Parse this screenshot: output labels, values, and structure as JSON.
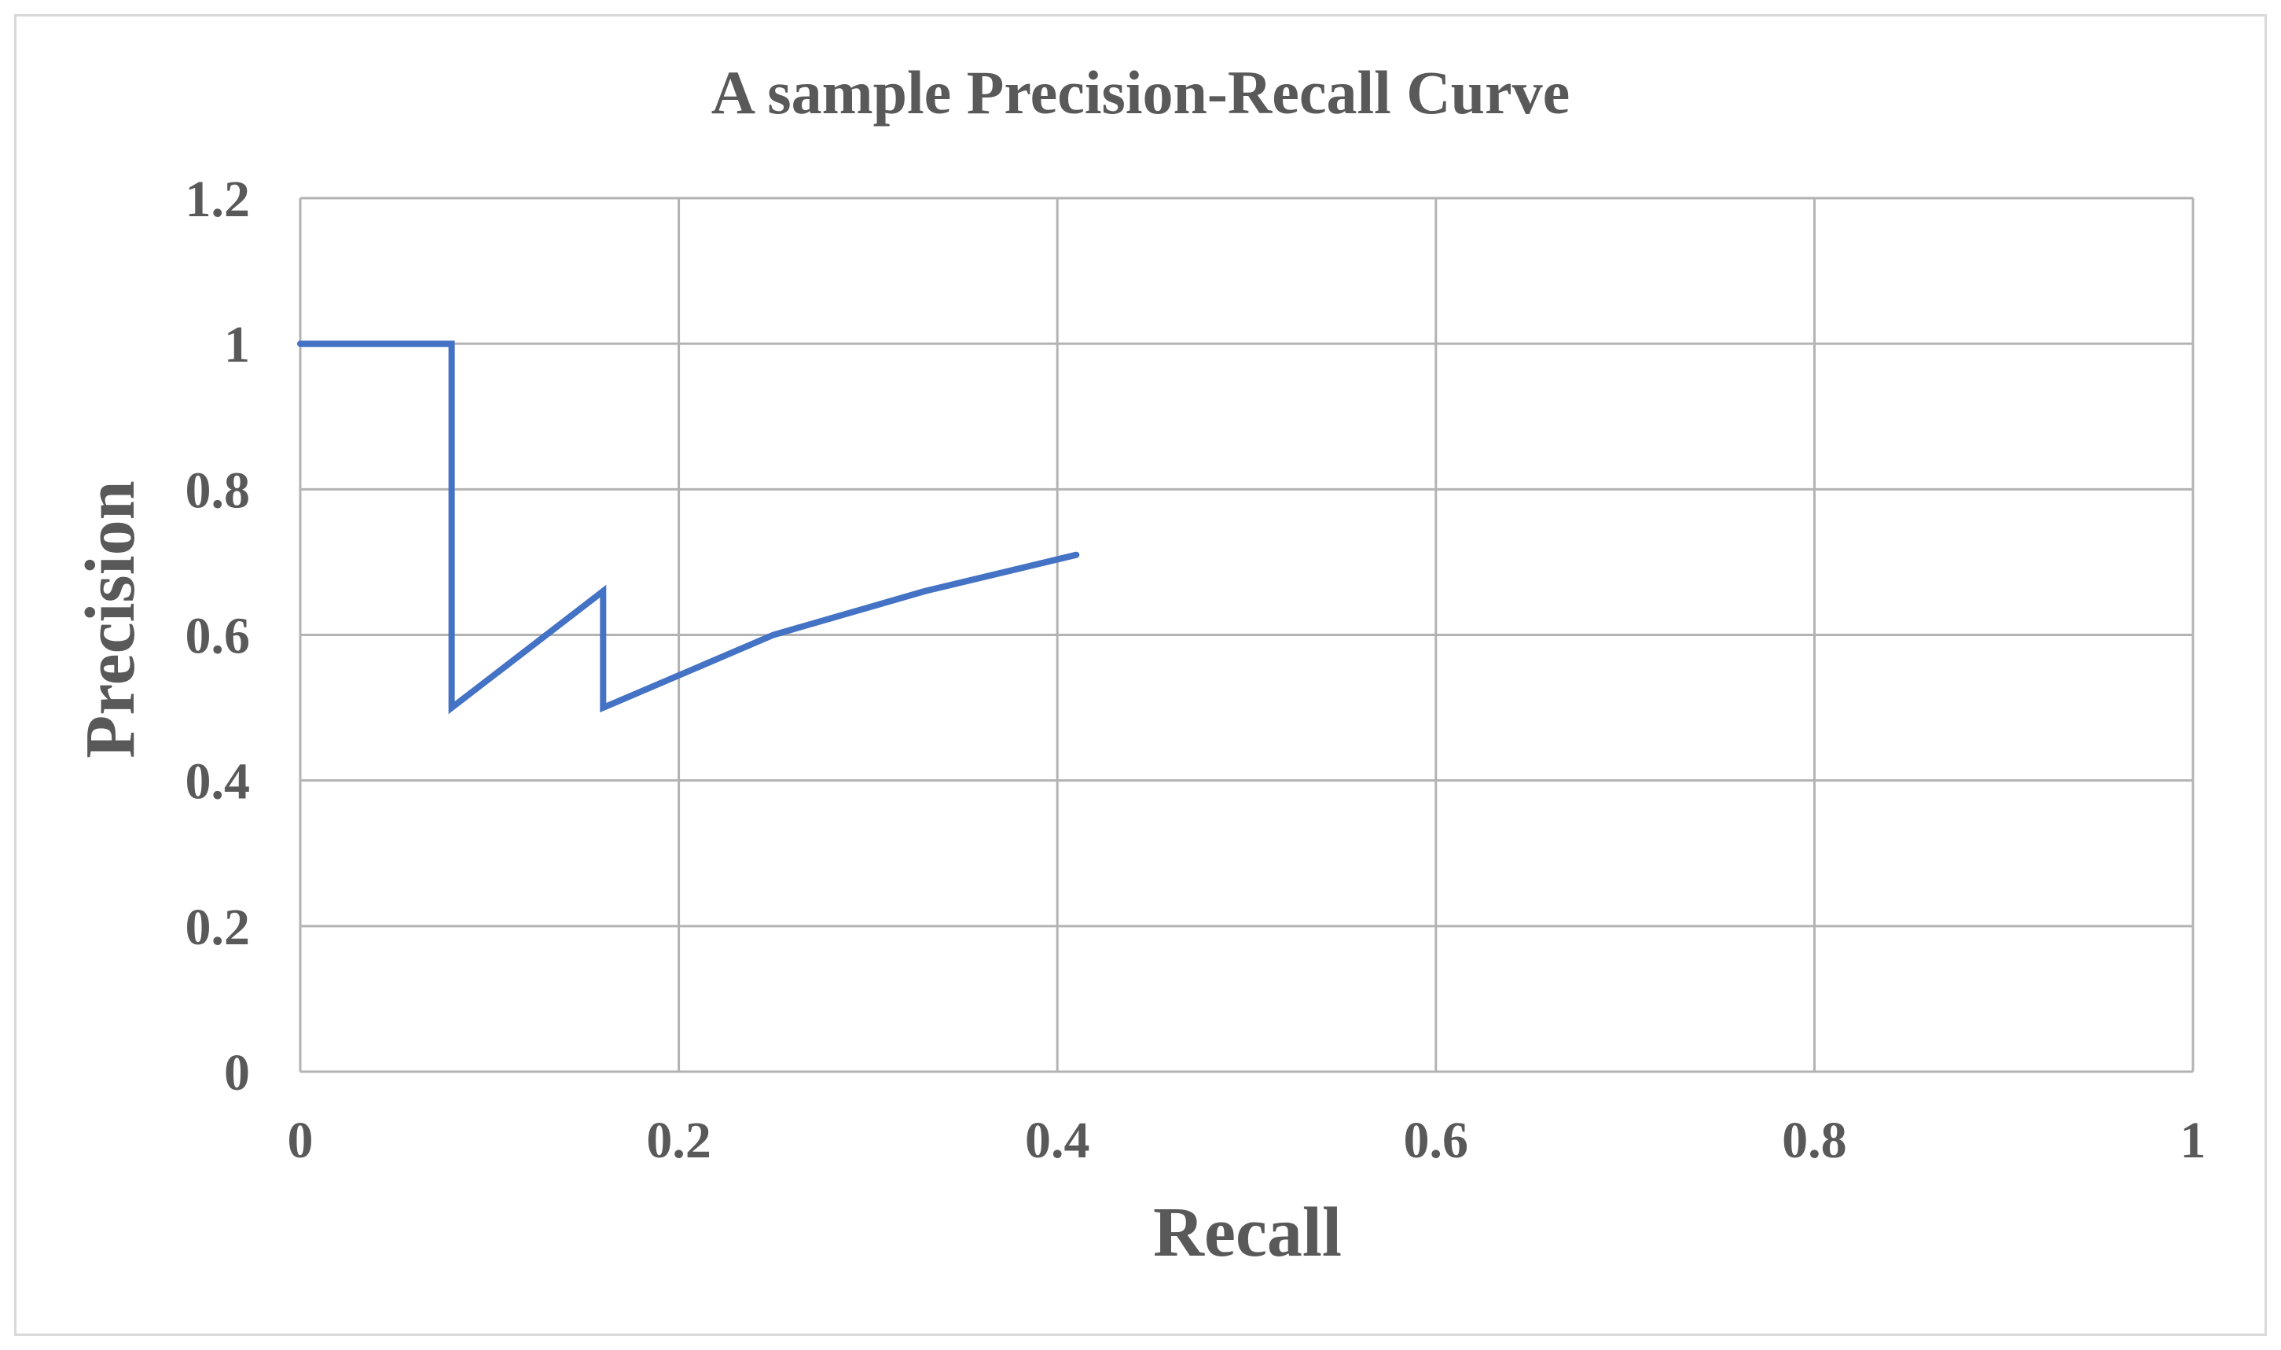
{
  "chart_data": {
    "type": "line",
    "title": "A sample Precision-Recall Curve",
    "xlabel": "Recall",
    "ylabel": "Precision",
    "xlim": [
      0,
      1
    ],
    "ylim": [
      0,
      1.2
    ],
    "x_ticks": [
      "0",
      "0.2",
      "0.4",
      "0.6",
      "0.8",
      "1"
    ],
    "y_ticks": [
      "0",
      "0.2",
      "0.4",
      "0.6",
      "0.8",
      "1",
      "1.2"
    ],
    "grid": true,
    "legend": "none",
    "colors": {
      "line": "#4472c4",
      "grid": "#b3b3b3",
      "text": "#595959",
      "border": "#d9d9d9"
    },
    "series": [
      {
        "x": [
          0,
          0.08,
          0.08,
          0.16,
          0.16,
          0.25,
          0.33,
          0.41
        ],
        "y": [
          1.0,
          1.0,
          0.5,
          0.66,
          0.5,
          0.6,
          0.66,
          0.71
        ]
      }
    ]
  }
}
